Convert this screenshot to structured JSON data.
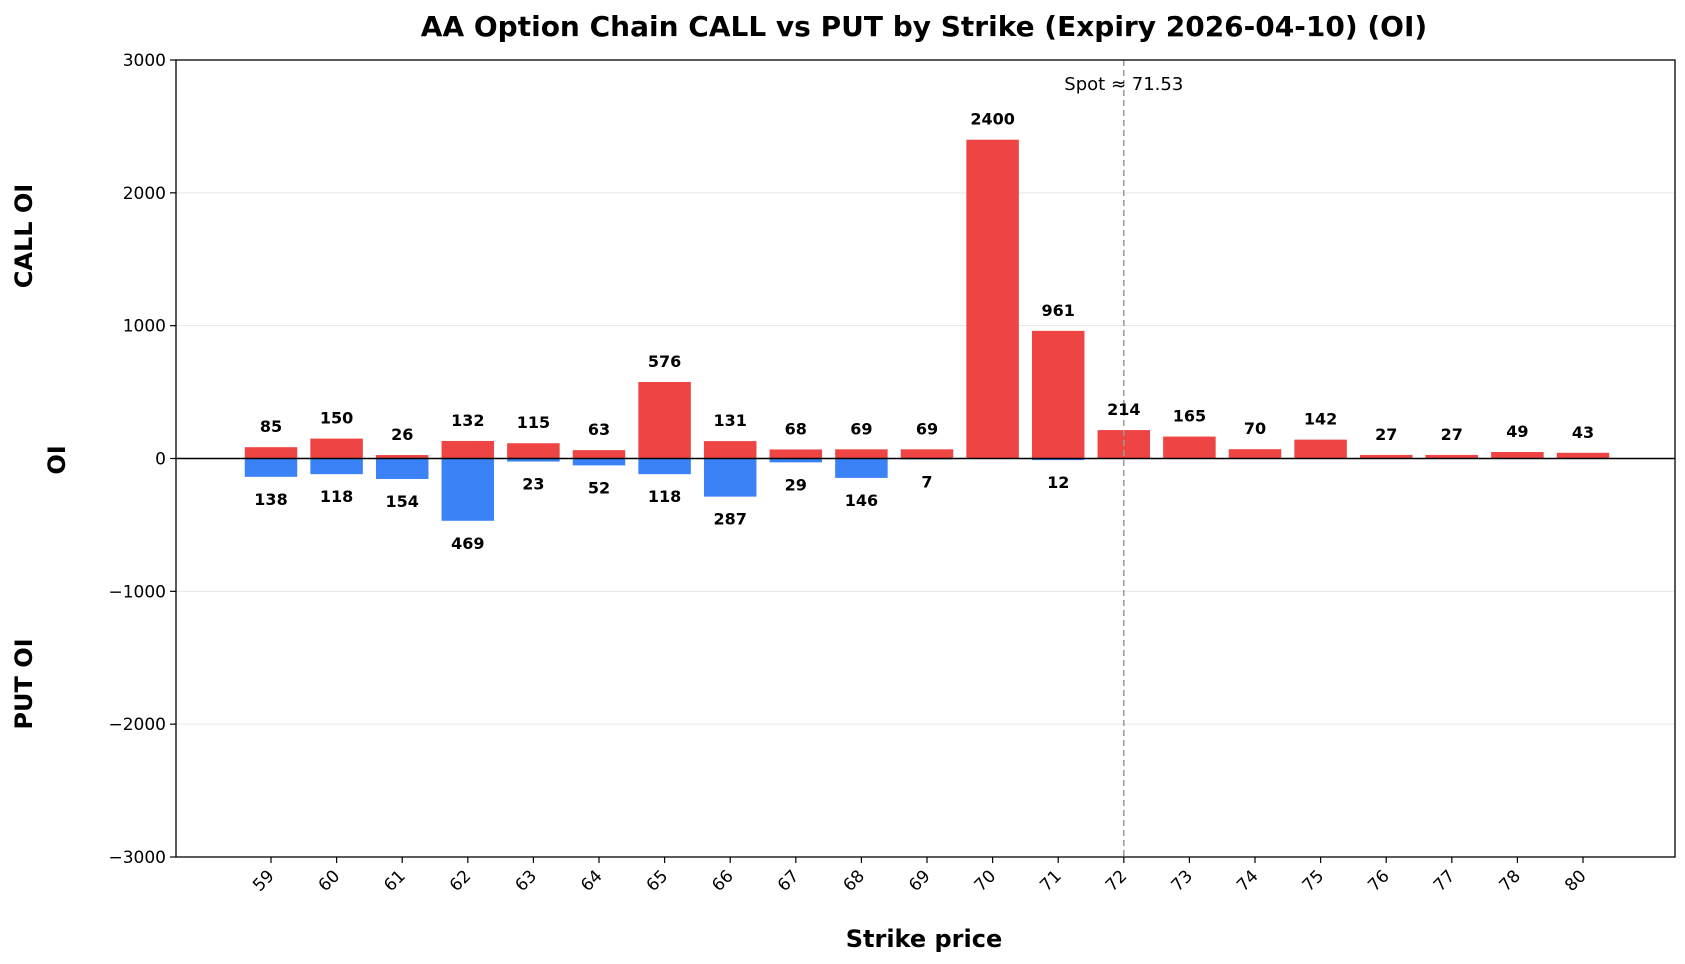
{
  "chart_data": {
    "type": "bar",
    "title": "AA Option Chain CALL vs PUT by Strike (Expiry 2026-04-10) (OI)",
    "xlabel": "Strike price",
    "ylabel": "OI",
    "ylabel_top": "CALL OI",
    "ylabel_bottom": "PUT OI",
    "ylim": [
      -3000,
      3000
    ],
    "yticks": [
      -3000,
      -2000,
      -1000,
      0,
      1000,
      2000,
      3000
    ],
    "ytick_labels": [
      "−3000",
      "−2000",
      "−1000",
      "0",
      "1000",
      "2000",
      "3000"
    ],
    "grid": true,
    "categories": [
      "59",
      "60",
      "61",
      "62",
      "63",
      "64",
      "65",
      "66",
      "67",
      "68",
      "69",
      "70",
      "71",
      "72",
      "73",
      "74",
      "75",
      "76",
      "77",
      "78",
      "80"
    ],
    "series": [
      {
        "color": "#ef4444",
        "values": [
          85,
          150,
          26,
          132,
          115,
          63,
          576,
          131,
          68,
          69,
          69,
          2400,
          961,
          214,
          165,
          70,
          142,
          27,
          27,
          49,
          43
        ]
      },
      {
        "color": "#3b82f6",
        "values": [
          138,
          118,
          154,
          469,
          23,
          52,
          118,
          287,
          29,
          146,
          7,
          0,
          12,
          0,
          0,
          0,
          0,
          0,
          0,
          0,
          0
        ],
        "labels": [
          "138",
          "118",
          "154",
          "469",
          "23",
          "52",
          "118",
          "287",
          "29",
          "146",
          "7",
          "",
          "12",
          "",
          "",
          "",
          "",
          "",
          "",
          "",
          ""
        ]
      }
    ],
    "annotation": {
      "text": "Spot ≈ 71.53",
      "spot": 71.53,
      "style": "dashed vertical line"
    }
  }
}
